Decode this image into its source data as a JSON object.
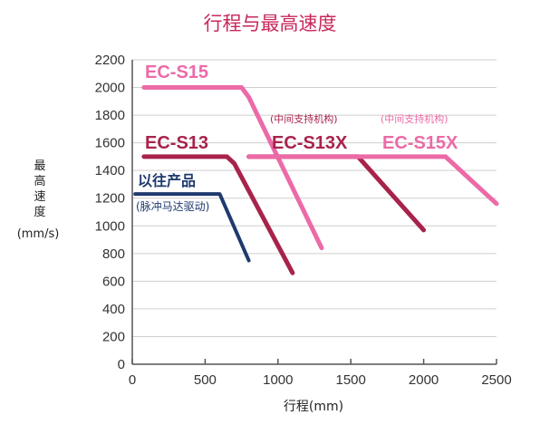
{
  "chart_data": {
    "type": "line",
    "title": "行程与最高速度",
    "xlabel": "行程(mm)",
    "ylabel": [
      "最",
      "高",
      "速",
      "度",
      "(mm/s)"
    ],
    "xlim": [
      0,
      2500
    ],
    "ylim": [
      0,
      2200
    ],
    "xticks": [
      0,
      500,
      1000,
      1500,
      2000,
      2500
    ],
    "yticks": [
      0,
      200,
      400,
      600,
      800,
      1000,
      1200,
      1400,
      1600,
      1800,
      2000,
      2200
    ],
    "grid": "horizontal",
    "series": [
      {
        "name": "EC-S15",
        "color": "#ec6aa7",
        "x": [
          80,
          750,
          800,
          1300
        ],
        "y": [
          2000,
          2000,
          1930,
          840
        ]
      },
      {
        "name": "EC-S13",
        "color": "#a8234b",
        "x": [
          80,
          650,
          700,
          1100
        ],
        "y": [
          1500,
          1500,
          1450,
          660
        ]
      },
      {
        "name": "EC-S13X",
        "note": "(中间支持机构)",
        "color": "#a8234b",
        "x": [
          800,
          1550,
          2000
        ],
        "y": [
          1500,
          1500,
          970
        ]
      },
      {
        "name": "EC-S15X",
        "note": "(中间支持机构)",
        "color": "#ec6aa7",
        "x": [
          800,
          2150,
          2500
        ],
        "y": [
          1500,
          1500,
          1160
        ]
      },
      {
        "name": "以往产品",
        "note": "(脉冲马达驱动)",
        "color": "#1e3a6e",
        "x": [
          20,
          600,
          800
        ],
        "y": [
          1230,
          1230,
          750
        ]
      }
    ]
  }
}
